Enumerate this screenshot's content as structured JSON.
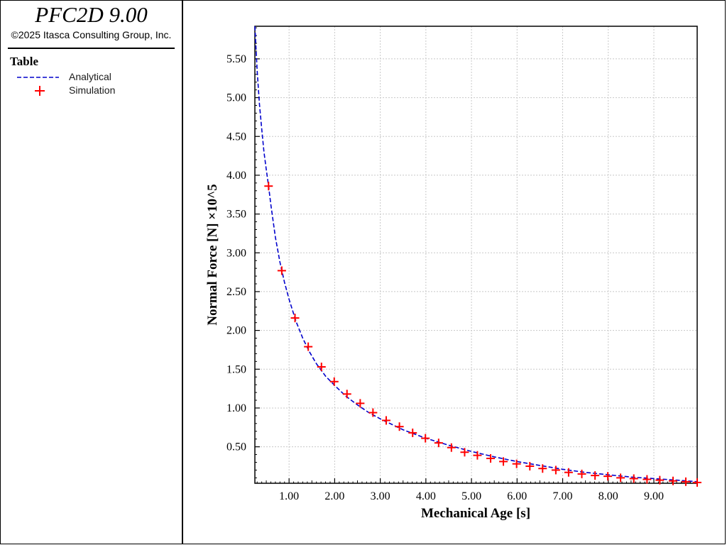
{
  "app": {
    "title": "PFC2D 9.00",
    "copyright": "©2025 Itasca Consulting Group, Inc."
  },
  "legend": {
    "heading": "Table",
    "items": [
      {
        "label": "Analytical",
        "style": "dashed-line",
        "color": "#0000cc"
      },
      {
        "label": "Simulation",
        "style": "plus-marker",
        "color": "#ff0000"
      }
    ]
  },
  "chart_data": {
    "type": "line",
    "xlabel": "Mechanical Age [s]",
    "ylabel": "Normal Force [N] ×10^5",
    "xlim": [
      0.25,
      9.95
    ],
    "ylim": [
      0.03,
      5.92
    ],
    "xticks": [
      "1.00",
      "2.00",
      "3.00",
      "4.00",
      "5.00",
      "6.00",
      "7.00",
      "8.00",
      "9.00"
    ],
    "yticks": [
      "0.50",
      "1.00",
      "1.50",
      "2.00",
      "2.50",
      "3.00",
      "3.50",
      "4.00",
      "4.50",
      "5.00",
      "5.50"
    ],
    "grid": true,
    "series": [
      {
        "name": "Analytical",
        "style": "dashed",
        "color": "#0000cc",
        "x": [
          0.25,
          0.3,
          0.35,
          0.4,
          0.45,
          0.5,
          0.55,
          0.6,
          0.7,
          0.8,
          0.9,
          1.0,
          1.15,
          1.3,
          1.45,
          1.6,
          1.8,
          2.0,
          2.25,
          2.5,
          2.75,
          3.0,
          3.5,
          4.0,
          4.5,
          5.0,
          5.5,
          6.0,
          6.5,
          7.0,
          7.5,
          8.0,
          8.5,
          9.0,
          9.5,
          9.95
        ],
        "y": [
          5.92,
          5.35,
          4.92,
          4.6,
          4.3,
          4.07,
          3.86,
          3.62,
          3.2,
          2.88,
          2.62,
          2.4,
          2.12,
          1.9,
          1.72,
          1.57,
          1.41,
          1.29,
          1.15,
          1.04,
          0.94,
          0.86,
          0.72,
          0.61,
          0.52,
          0.44,
          0.37,
          0.31,
          0.26,
          0.21,
          0.17,
          0.14,
          0.11,
          0.09,
          0.07,
          0.05
        ]
      },
      {
        "name": "Simulation",
        "style": "plus-marker",
        "color": "#ff0000",
        "x": [
          0.55,
          0.84,
          1.13,
          1.42,
          1.71,
          1.99,
          2.27,
          2.56,
          2.84,
          3.13,
          3.42,
          3.71,
          3.99,
          4.28,
          4.56,
          4.85,
          5.13,
          5.42,
          5.7,
          5.99,
          6.28,
          6.56,
          6.85,
          7.13,
          7.42,
          7.71,
          7.99,
          8.27,
          8.56,
          8.85,
          9.13,
          9.42,
          9.7,
          9.95
        ],
        "y": [
          3.86,
          2.77,
          2.16,
          1.79,
          1.53,
          1.34,
          1.18,
          1.06,
          0.94,
          0.84,
          0.76,
          0.68,
          0.61,
          0.55,
          0.49,
          0.43,
          0.39,
          0.35,
          0.31,
          0.28,
          0.25,
          0.22,
          0.2,
          0.17,
          0.15,
          0.13,
          0.12,
          0.1,
          0.09,
          0.08,
          0.07,
          0.06,
          0.05,
          0.04
        ]
      }
    ]
  }
}
